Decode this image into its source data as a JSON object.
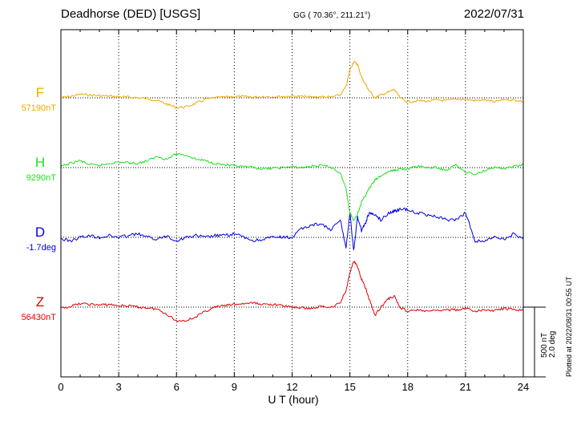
{
  "header": {
    "station": "Deadhorse (DED)  [USGS]",
    "coords": "GG ( 70.36°, 211.21°)",
    "date": "2022/07/31",
    "plotted": "Plotted at 2022/08/31 00:55 UT"
  },
  "scale": {
    "nt": "500 nT",
    "deg": "2.0 deg"
  },
  "chart_data": {
    "type": "line",
    "xlabel": "U T (hour)",
    "xlim": [
      0,
      24
    ],
    "xticks": [
      "0",
      "3",
      "6",
      "9",
      "12",
      "15",
      "18",
      "21",
      "24"
    ],
    "grid": true,
    "series": [
      {
        "name": "F",
        "baseline_label": "57190nT",
        "color": "#f0a800",
        "x": [
          0,
          0.5,
          1,
          1.5,
          2,
          2.5,
          3,
          3.5,
          4,
          4.5,
          5,
          5.5,
          6,
          6.5,
          7,
          7.5,
          8,
          8.5,
          9,
          9.5,
          10,
          10.5,
          11,
          11.5,
          12,
          12.5,
          13,
          13.5,
          14,
          14.5,
          14.8,
          15.0,
          15.2,
          15.4,
          15.6,
          15.8,
          16.0,
          16.3,
          16.6,
          17.0,
          17.3,
          17.6,
          18.0,
          18.5,
          19,
          19.5,
          20,
          20.5,
          21,
          21.5,
          22,
          22.5,
          23,
          23.5,
          24
        ],
        "y": [
          0,
          10,
          25,
          20,
          15,
          12,
          8,
          5,
          0,
          -5,
          -20,
          -45,
          -70,
          -65,
          -40,
          -10,
          0,
          5,
          10,
          8,
          5,
          10,
          8,
          10,
          12,
          10,
          5,
          8,
          5,
          20,
          80,
          200,
          260,
          240,
          150,
          100,
          50,
          0,
          20,
          40,
          60,
          0,
          -30,
          -20,
          -25,
          -15,
          -20,
          -10,
          -10,
          -20,
          -15,
          -30,
          -10,
          -15,
          -25
        ]
      },
      {
        "name": "H",
        "baseline_label": "9290nT",
        "color": "#20e020",
        "x": [
          0,
          0.5,
          1,
          1.5,
          2,
          2.5,
          3,
          3.5,
          4,
          4.5,
          5,
          5.5,
          6,
          6.5,
          7,
          7.5,
          8,
          8.5,
          9,
          9.5,
          10,
          10.5,
          11,
          11.5,
          12,
          12.5,
          13,
          13.5,
          14,
          14.5,
          14.8,
          15.0,
          15.2,
          15.4,
          15.6,
          15.8,
          16.0,
          16.3,
          16.6,
          17.0,
          17.3,
          17.6,
          18.0,
          18.5,
          19,
          19.5,
          20,
          20.5,
          21,
          21.5,
          22,
          22.5,
          23,
          23.5,
          24
        ],
        "y": [
          10,
          30,
          50,
          20,
          15,
          30,
          40,
          35,
          30,
          50,
          80,
          60,
          100,
          90,
          60,
          50,
          30,
          20,
          10,
          5,
          0,
          -10,
          -5,
          0,
          5,
          0,
          10,
          15,
          5,
          -40,
          -150,
          -320,
          -380,
          -330,
          -250,
          -200,
          -150,
          -90,
          -60,
          -30,
          -20,
          -10,
          -10,
          10,
          0,
          0,
          -20,
          20,
          -30,
          -50,
          -20,
          5,
          -10,
          10,
          20
        ]
      },
      {
        "name": "D",
        "baseline_label": "-1.7deg",
        "color": "#0000e0",
        "x": [
          0,
          0.5,
          1,
          1.5,
          2,
          2.5,
          3,
          3.5,
          4,
          4.5,
          5,
          5.5,
          6,
          6.5,
          7,
          7.5,
          8,
          8.5,
          9,
          9.5,
          10,
          10.5,
          11,
          11.5,
          12,
          12.5,
          13,
          13.5,
          14,
          14.5,
          14.8,
          15.0,
          15.2,
          15.4,
          15.6,
          15.8,
          16.0,
          16.3,
          16.6,
          17.0,
          17.3,
          17.6,
          18.0,
          18.5,
          19,
          19.5,
          20,
          20.5,
          21,
          21.5,
          22,
          22.5,
          23,
          23.5,
          24
        ],
        "y": [
          -0.05,
          -0.1,
          0.0,
          0.05,
          0.0,
          0.05,
          0.0,
          0.05,
          0.1,
          0.0,
          -0.05,
          0.05,
          -0.1,
          0.0,
          0.05,
          0.0,
          0.05,
          0.05,
          0.1,
          0.0,
          -0.1,
          -0.05,
          0.0,
          0.0,
          0.0,
          0.25,
          0.35,
          0.4,
          0.2,
          0.5,
          -0.3,
          0.7,
          -0.4,
          0.6,
          0.2,
          0.4,
          0.7,
          0.65,
          0.5,
          0.7,
          0.75,
          0.8,
          0.8,
          0.7,
          0.65,
          0.6,
          0.5,
          0.5,
          0.7,
          -0.1,
          -0.1,
          0.0,
          -0.05,
          0.1,
          -0.05
        ]
      },
      {
        "name": "Z",
        "baseline_label": "56430nT",
        "color": "#e00000",
        "x": [
          0,
          0.5,
          1,
          1.5,
          2,
          2.5,
          3,
          3.5,
          4,
          4.5,
          5,
          5.5,
          6,
          6.5,
          7,
          7.5,
          8,
          8.5,
          9,
          9.5,
          10,
          10.5,
          11,
          11.5,
          12,
          12.5,
          13,
          13.5,
          14,
          14.5,
          14.8,
          15.0,
          15.2,
          15.4,
          15.6,
          15.8,
          16.0,
          16.3,
          16.6,
          17.0,
          17.3,
          17.6,
          18.0,
          18.5,
          19,
          19.5,
          20,
          20.5,
          21,
          21.5,
          22,
          22.5,
          23,
          23.5,
          24
        ],
        "y": [
          -10,
          5,
          25,
          20,
          15,
          20,
          10,
          10,
          0,
          -5,
          -15,
          -50,
          -100,
          -95,
          -70,
          -30,
          0,
          10,
          20,
          25,
          30,
          20,
          20,
          10,
          0,
          -5,
          -10,
          5,
          0,
          30,
          120,
          250,
          330,
          290,
          200,
          140,
          60,
          -60,
          0,
          60,
          80,
          0,
          -30,
          -20,
          -30,
          -25,
          -20,
          -20,
          -10,
          -30,
          -20,
          -25,
          -10,
          -20,
          -20
        ]
      }
    ]
  }
}
